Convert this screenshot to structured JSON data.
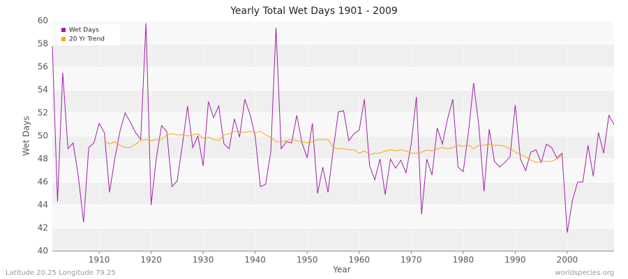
{
  "chart_data": {
    "type": "line",
    "title": "Yearly Total Wet Days 1901 - 2009",
    "x_label": "Year",
    "y_label": "Wet Days",
    "footer_left": "Latitude 20.25 Longitude 79.25",
    "footer_right": "worldspecies.org",
    "legend": "top-left",
    "grid": true,
    "xlim": [
      1901,
      2009
    ],
    "xticks": [
      1910,
      1920,
      1930,
      1940,
      1950,
      1960,
      1970,
      1980,
      1990,
      2000
    ],
    "ylim": [
      40,
      60
    ],
    "yticks": [
      40,
      42,
      44,
      46,
      48,
      50,
      52,
      54,
      56,
      58,
      60
    ],
    "x": [
      1901,
      1902,
      1903,
      1904,
      1905,
      1906,
      1907,
      1908,
      1909,
      1910,
      1911,
      1912,
      1913,
      1914,
      1915,
      1916,
      1917,
      1918,
      1919,
      1920,
      1921,
      1922,
      1923,
      1924,
      1925,
      1926,
      1927,
      1928,
      1929,
      1930,
      1931,
      1932,
      1933,
      1934,
      1935,
      1936,
      1937,
      1938,
      1939,
      1940,
      1941,
      1942,
      1943,
      1944,
      1945,
      1946,
      1947,
      1948,
      1949,
      1950,
      1951,
      1952,
      1953,
      1954,
      1955,
      1956,
      1957,
      1958,
      1959,
      1960,
      1961,
      1962,
      1963,
      1964,
      1965,
      1966,
      1967,
      1968,
      1969,
      1970,
      1971,
      1972,
      1973,
      1974,
      1975,
      1976,
      1977,
      1978,
      1979,
      1980,
      1981,
      1982,
      1983,
      1984,
      1985,
      1986,
      1987,
      1988,
      1989,
      1990,
      1991,
      1992,
      1993,
      1994,
      1995,
      1996,
      1997,
      1998,
      1999,
      2000,
      2001,
      2002,
      2003,
      2004,
      2005,
      2006,
      2007,
      2008,
      2009
    ],
    "series": [
      {
        "name": "Wet Days",
        "color": "#a020a8",
        "values": [
          57.8,
          44.3,
          55.5,
          48.9,
          49.4,
          46.5,
          42.5,
          49.0,
          49.4,
          51.1,
          50.3,
          45.1,
          48.0,
          50.4,
          52.0,
          51.2,
          50.3,
          49.7,
          59.8,
          44.0,
          48.1,
          50.9,
          50.4,
          45.6,
          46.1,
          49.2,
          52.6,
          49.0,
          50.0,
          47.4,
          53.0,
          51.6,
          52.6,
          49.3,
          48.9,
          51.5,
          49.9,
          53.2,
          51.9,
          50.0,
          45.6,
          45.8,
          48.6,
          59.4,
          48.9,
          49.5,
          49.4,
          51.8,
          49.4,
          48.1,
          51.1,
          45.0,
          47.3,
          45.1,
          48.8,
          52.1,
          52.2,
          49.6,
          50.2,
          50.5,
          53.2,
          47.4,
          46.2,
          48.0,
          44.9,
          48.0,
          47.2,
          47.9,
          46.8,
          49.3,
          53.4,
          43.2,
          48.0,
          46.6,
          50.7,
          49.3,
          51.5,
          53.2,
          47.3,
          46.9,
          50.3,
          54.6,
          50.9,
          45.2,
          50.6,
          47.8,
          47.3,
          47.7,
          48.2,
          52.7,
          48.0,
          47.0,
          48.6,
          48.8,
          47.7,
          49.3,
          49.0,
          48.1,
          48.5,
          41.6,
          44.4,
          46.0,
          46.0,
          49.2,
          46.5,
          50.3,
          48.5,
          51.8,
          51.0
        ]
      },
      {
        "name": "20 Yr Trend",
        "color": "#ffa500",
        "values": [
          null,
          null,
          null,
          null,
          null,
          null,
          null,
          null,
          null,
          null,
          49.6,
          49.3,
          49.5,
          49.2,
          49.0,
          49.0,
          49.3,
          49.6,
          49.7,
          49.6,
          49.7,
          49.7,
          50.1,
          50.2,
          50.1,
          50.1,
          50.0,
          50.1,
          50.2,
          49.8,
          49.9,
          49.7,
          49.6,
          50.1,
          50.2,
          50.4,
          50.4,
          50.3,
          50.4,
          50.3,
          50.4,
          50.1,
          49.9,
          49.5,
          49.5,
          49.6,
          49.7,
          49.6,
          49.5,
          49.4,
          49.5,
          49.7,
          49.7,
          49.7,
          49.0,
          48.9,
          48.9,
          48.8,
          48.8,
          48.5,
          48.7,
          48.4,
          48.5,
          48.5,
          48.7,
          48.8,
          48.7,
          48.8,
          48.7,
          48.5,
          48.5,
          48.6,
          48.8,
          48.7,
          48.9,
          49.0,
          48.9,
          49.0,
          49.2,
          49.1,
          49.2,
          48.9,
          49.2,
          49.2,
          49.3,
          49.2,
          49.2,
          49.1,
          48.9,
          48.6,
          48.4,
          48.2,
          47.9,
          47.7,
          47.8,
          47.8,
          47.8,
          48.0,
          48.3,
          null,
          null,
          null,
          null,
          null,
          null,
          null,
          null,
          null,
          null
        ]
      }
    ]
  }
}
